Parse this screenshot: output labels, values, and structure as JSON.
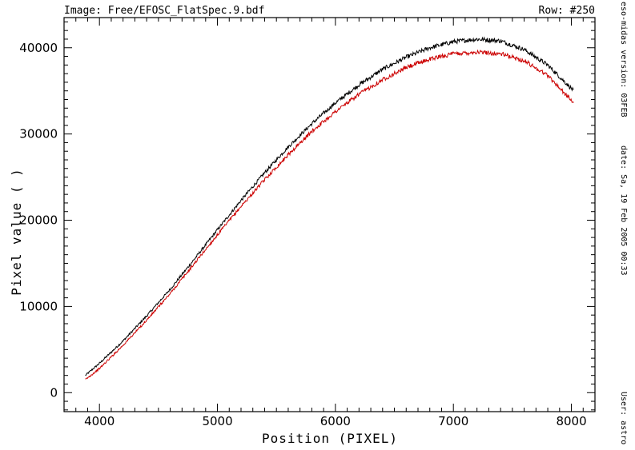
{
  "header": {
    "image_label": "Image:  Free/EFOSC_FlatSpec.9.bdf",
    "row_label": "Row:  #250"
  },
  "side_info": {
    "version": "eso-midas version: 03FEB",
    "date": "date: Sa, 19 Feb 2005 00:33",
    "user": "User: astro"
  },
  "chart_data": {
    "type": "line",
    "xlabel": "Position (PIXEL)",
    "ylabel": "Pixel value (  )",
    "xlim": [
      3700,
      8200
    ],
    "ylim": [
      -2200,
      43500
    ],
    "xticks": [
      4000,
      5000,
      6000,
      7000,
      8000
    ],
    "yticks": [
      0,
      10000,
      20000,
      30000,
      40000
    ],
    "grid": false,
    "series": [
      {
        "color": "#000000",
        "x": [
          3880,
          4000,
          4200,
          4400,
          4600,
          4800,
          5000,
          5200,
          5400,
          5600,
          5800,
          6000,
          6200,
          6400,
          6600,
          6800,
          7000,
          7200,
          7400,
          7600,
          7800,
          8020
        ],
        "values": [
          2000,
          3400,
          6000,
          8900,
          12000,
          15400,
          18900,
          22300,
          25500,
          28500,
          31200,
          33600,
          35700,
          37500,
          38900,
          40000,
          40700,
          41000,
          40800,
          39800,
          38000,
          35000
        ]
      },
      {
        "color": "#cc0000",
        "x": [
          3880,
          4000,
          4200,
          4400,
          4600,
          4800,
          5000,
          5200,
          5400,
          5600,
          5800,
          6000,
          6200,
          6400,
          6600,
          6800,
          7000,
          7200,
          7400,
          7600,
          7800,
          8020
        ],
        "values": [
          1500,
          2800,
          5500,
          8400,
          11500,
          14900,
          18300,
          21600,
          24700,
          27600,
          30300,
          32600,
          34600,
          36300,
          37700,
          38700,
          39300,
          39500,
          39300,
          38500,
          36800,
          33600
        ]
      }
    ]
  }
}
